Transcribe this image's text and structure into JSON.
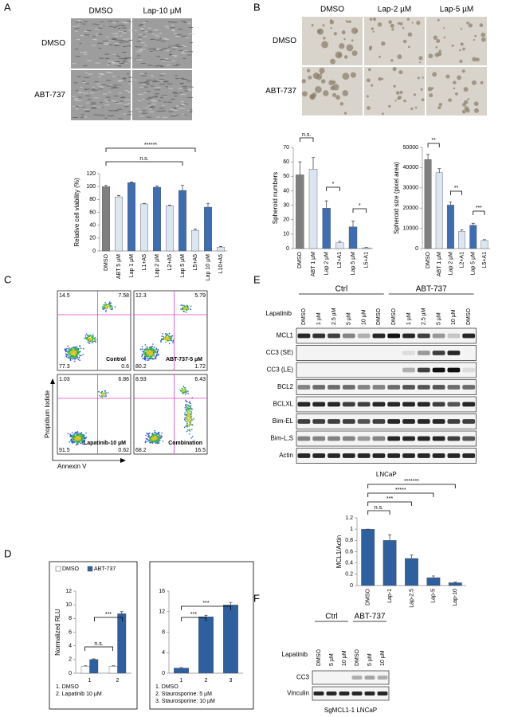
{
  "figure": {
    "A": {
      "letter": "A",
      "columns": [
        "DMSO",
        "Lap-10 µM"
      ],
      "rows": [
        "DMSO",
        "ABT-737"
      ]
    },
    "B": {
      "letter": "B",
      "columns": [
        "DMSO",
        "Lap-2 µM",
        "Lap-5 µM"
      ],
      "rows": [
        "DMSO",
        "ABT-737"
      ]
    },
    "C": {
      "letter": "C",
      "ylabel": "Propidium Iodide",
      "xlabel": "Annexin V",
      "plots": [
        {
          "name": "Control",
          "quadrants": [
            14.5,
            7.58,
            77.3,
            0.6
          ]
        },
        {
          "name": "ABT-737-5 µM",
          "quadrants": [
            12.3,
            5.79,
            80.2,
            1.72
          ]
        },
        {
          "name": "Lapatinib-10 µM",
          "quadrants": [
            1.03,
            6.86,
            91.5,
            0.62
          ]
        },
        {
          "name": "Combination",
          "quadrants": [
            8.93,
            6.43,
            68.2,
            16.5
          ]
        }
      ]
    },
    "D": {
      "letter": "D",
      "notes_left": [
        "1.  DMSO",
        "2.  Lapatinib 10 µM"
      ],
      "notes_right": [
        "1.  DMSO",
        "2.  Staurosporine: 5 µM",
        "3.  Staurosporine: 10 µM"
      ]
    },
    "E": {
      "letter": "E",
      "groups": [
        "Ctrl",
        "ABT-737"
      ],
      "treatment": "Lapatinib",
      "lanes": [
        "DMSO",
        "1 µM",
        "2.5 µM",
        "5 µM",
        "10 µM",
        "DMSO",
        "DMSO",
        "1 µM",
        "2.5 µM",
        "5 µM",
        "10 µM",
        "DMSO"
      ],
      "bands": [
        "MCL1",
        "CC3 (SE)",
        "CC3 (LE)",
        "BCL2",
        "BCLXL",
        "Bim-EL",
        "Bim-L,S",
        "Actin"
      ],
      "caption": "LNCaP"
    },
    "F": {
      "letter": "F",
      "groups": [
        "Ctrl",
        "ABT-737"
      ],
      "treatment": "Lapatinib",
      "lanes": [
        "DMSO",
        "5 µM",
        "10 µM",
        "DMSO",
        "5 µM",
        "10 µM"
      ],
      "bands": [
        "CC3",
        "Vinculin"
      ],
      "caption": "SgMCL1-1 LNCaP"
    }
  },
  "chart_data": [
    {
      "type": "bar",
      "ylabel": "Relative cell viability (%)",
      "categories": [
        "DMSO",
        "ABT 5 µM",
        "Lap 1 µM",
        "L1+A5",
        "Lap 2 µM",
        "L2+A5",
        "Lap 5 µM",
        "L5+A5",
        "Lap 10 µM",
        "L10+A5"
      ],
      "values": [
        100,
        84,
        106,
        73,
        99,
        70,
        94,
        32,
        68,
        6
      ],
      "errors": [
        2,
        2,
        1,
        1,
        2,
        1,
        8,
        2,
        6,
        1
      ],
      "colors": [
        "#7f7f7f",
        "#dce6f2",
        "#3d6db3",
        "#dce6f2",
        "#3d6db3",
        "#dce6f2",
        "#3d6db3",
        "#dce6f2",
        "#3d6db3",
        "#dce6f2"
      ],
      "ylim": [
        0,
        120
      ],
      "yticks": [
        0,
        20,
        40,
        60,
        80,
        100,
        120
      ],
      "annotations": [
        "n.s.",
        "******"
      ]
    },
    {
      "type": "bar",
      "ylabel": "Spheroid numbers",
      "categories": [
        "DMSO",
        "ABT 1 µM",
        "Lap 2 µM",
        "L2+A1",
        "Lap 5 µM",
        "L5+A1"
      ],
      "values": [
        51,
        55,
        28,
        4,
        15,
        0.5
      ],
      "errors": [
        9,
        8,
        5,
        1,
        4,
        0.3
      ],
      "colors": [
        "#7f7f7f",
        "#dce6f2",
        "#3d6db3",
        "#dce6f2",
        "#3d6db3",
        "#dce6f2"
      ],
      "ylim": [
        0,
        70
      ],
      "yticks": [
        0,
        10,
        20,
        30,
        40,
        50,
        60,
        70
      ],
      "annotations": [
        "n.s.",
        "*",
        "*"
      ]
    },
    {
      "type": "bar",
      "ylabel": "Spheroid size (pixel area)",
      "categories": [
        "DMSO",
        "ABT 1 µM",
        "Lap 2 µM",
        "L2+A1",
        "Lap 5 µM",
        "L5+A1"
      ],
      "values": [
        44000,
        37500,
        21500,
        8500,
        11500,
        4000
      ],
      "errors": [
        2500,
        2000,
        1500,
        700,
        1000,
        400
      ],
      "colors": [
        "#7f7f7f",
        "#dce6f2",
        "#3d6db3",
        "#dce6f2",
        "#3d6db3",
        "#dce6f2"
      ],
      "ylim": [
        0,
        50000
      ],
      "yticks": [
        0,
        10000,
        20000,
        30000,
        40000,
        50000
      ],
      "annotations": [
        "**",
        "**",
        "***"
      ]
    },
    {
      "type": "bar",
      "ylabel": "MCL1/Actin",
      "categories": [
        "DMSO",
        "Lap-1",
        "Lap-2.5",
        "Lap-5",
        "Lap-10"
      ],
      "values": [
        1,
        0.8,
        0.48,
        0.14,
        0.05
      ],
      "errors": [
        0,
        0.1,
        0.06,
        0.03,
        0.01
      ],
      "colors": [
        "#2e5f9e",
        "#2e5f9e",
        "#2e5f9e",
        "#2e5f9e",
        "#2e5f9e"
      ],
      "ylim": [
        0,
        1.2
      ],
      "yticks": [
        0,
        0.2,
        0.4,
        0.6,
        0.8,
        1,
        1.2
      ],
      "annotations": [
        "n.s.",
        "***",
        "*****",
        "*******"
      ]
    },
    {
      "type": "bar",
      "ylabel": "Normalized RLU",
      "categories": [
        "1",
        "2"
      ],
      "series": [
        {
          "name": "DMSO",
          "color": "#ffffff",
          "values": [
            1,
            1
          ],
          "errors": [
            0.1,
            0.1
          ]
        },
        {
          "name": "ABT-737",
          "color": "#2e5f9e",
          "values": [
            2,
            8.7
          ],
          "errors": [
            0.1,
            0.3
          ]
        }
      ],
      "ylim": [
        0,
        12
      ],
      "yticks": [
        0,
        2,
        4,
        6,
        8,
        10,
        12
      ],
      "legend": "top",
      "annotations": [
        "n.s.",
        "***"
      ]
    },
    {
      "type": "bar",
      "categories": [
        "1",
        "2",
        "3"
      ],
      "values": [
        1,
        11,
        13.3
      ],
      "errors": [
        0.1,
        0.3,
        0.5
      ],
      "colors": [
        "#2e5f9e",
        "#2e5f9e",
        "#2e5f9e"
      ],
      "ylim": [
        0,
        16
      ],
      "yticks": [
        0,
        4,
        8,
        12,
        16
      ],
      "annotations": [
        "***",
        "***"
      ]
    }
  ]
}
